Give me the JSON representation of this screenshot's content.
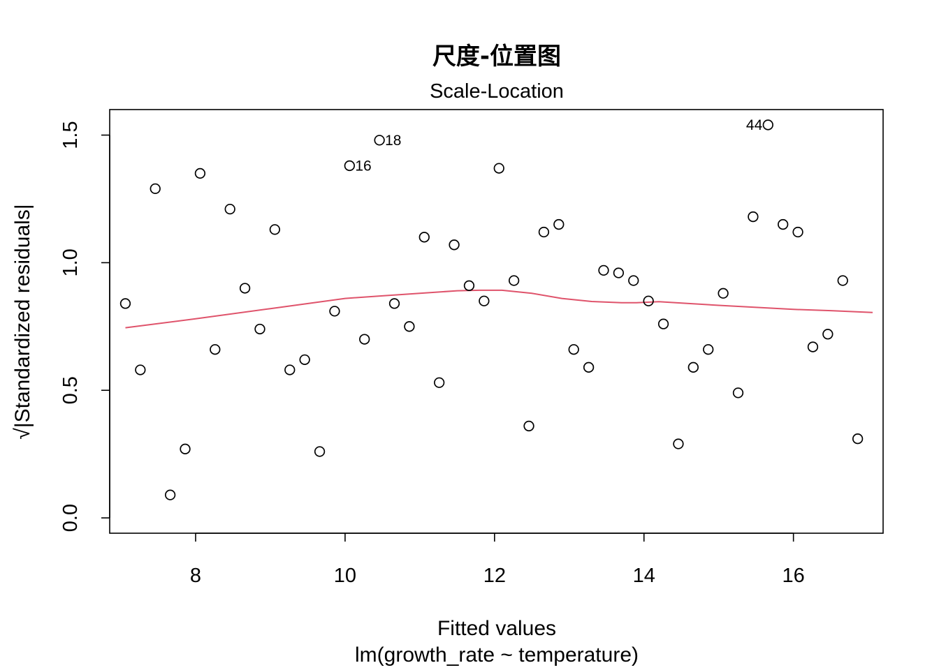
{
  "chart_data": {
    "type": "scatter",
    "title": "尺度-位置图",
    "subtitle": "Scale-Location",
    "xlabel": "Fitted values",
    "xlabel2": "lm(growth_rate ~ temperature)",
    "ylabel": "√|Standardized residuals|",
    "xlim": [
      6.85,
      17.2
    ],
    "ylim": [
      -0.06,
      1.6
    ],
    "xticks": [
      8,
      10,
      12,
      14,
      16
    ],
    "yticks": [
      0.0,
      0.5,
      1.0,
      1.5
    ],
    "xtick_labels": [
      "8",
      "10",
      "12",
      "14",
      "16"
    ],
    "ytick_labels": [
      "0.0",
      "0.5",
      "1.0",
      "1.5"
    ],
    "grid": false,
    "points_color": "#000000",
    "smooth_color": "#DF536B",
    "x": [
      7.06,
      7.26,
      7.46,
      7.66,
      7.86,
      8.06,
      8.26,
      8.46,
      8.66,
      8.86,
      9.06,
      9.26,
      9.46,
      9.66,
      9.86,
      10.06,
      10.26,
      10.46,
      10.66,
      10.86,
      11.06,
      11.26,
      11.46,
      11.66,
      11.86,
      12.06,
      12.26,
      12.46,
      12.66,
      12.86,
      13.06,
      13.26,
      13.46,
      13.66,
      13.86,
      14.06,
      14.26,
      14.46,
      14.66,
      14.86,
      15.06,
      15.26,
      15.46,
      15.66,
      15.86,
      16.06,
      16.26,
      16.46,
      16.66,
      16.86
    ],
    "y": [
      0.84,
      0.58,
      1.29,
      0.09,
      0.27,
      1.35,
      0.66,
      1.21,
      0.9,
      0.74,
      1.13,
      0.58,
      0.62,
      0.26,
      0.81,
      1.38,
      0.7,
      1.48,
      0.84,
      0.75,
      1.1,
      0.53,
      1.07,
      0.91,
      0.85,
      1.37,
      0.93,
      0.36,
      1.12,
      1.15,
      0.66,
      0.59,
      0.97,
      0.96,
      0.93,
      0.85,
      0.76,
      0.29,
      0.59,
      0.66,
      0.88,
      0.49,
      1.18,
      1.54,
      1.15,
      1.12,
      0.67,
      0.72,
      0.93,
      0.31
    ],
    "labels": [
      {
        "index": 15,
        "text": "16",
        "side": "right"
      },
      {
        "index": 17,
        "text": "18",
        "side": "right"
      },
      {
        "index": 43,
        "text": "44",
        "side": "left"
      }
    ],
    "smooth": {
      "x": [
        7.06,
        8.0,
        9.0,
        10.0,
        10.5,
        11.0,
        11.5,
        11.8,
        12.1,
        12.5,
        12.9,
        13.3,
        13.7,
        13.9,
        14.2,
        14.6,
        15.0,
        15.5,
        16.0,
        16.5,
        17.06
      ],
      "y": [
        0.745,
        0.78,
        0.82,
        0.86,
        0.87,
        0.88,
        0.89,
        0.892,
        0.892,
        0.88,
        0.86,
        0.848,
        0.843,
        0.843,
        0.847,
        0.84,
        0.833,
        0.825,
        0.817,
        0.812,
        0.805
      ]
    }
  }
}
